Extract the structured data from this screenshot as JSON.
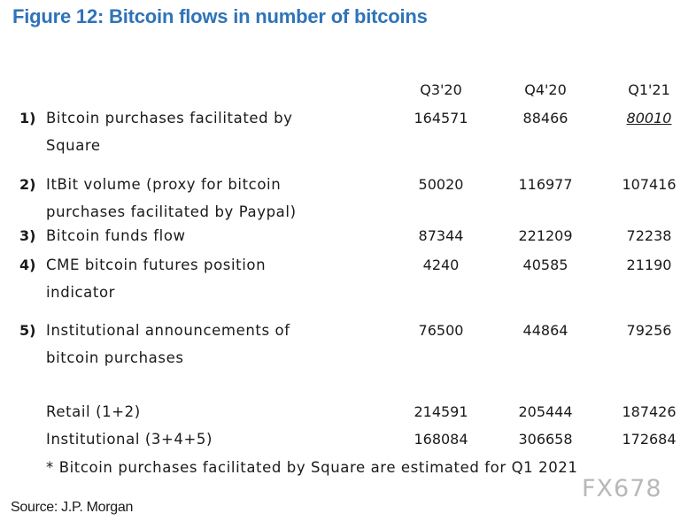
{
  "title": "Figure 12: Bitcoin flows in number of bitcoins",
  "columns": [
    "Q3'20",
    "Q4'20",
    "Q1'21"
  ],
  "rows": [
    {
      "num": "1)",
      "label_lines": [
        "Bitcoin purchases facilitated by",
        "Square"
      ],
      "values": [
        "164571",
        "88466",
        "80010"
      ]
    },
    {
      "num": "2)",
      "label_lines": [
        "ItBit volume (proxy for bitcoin",
        "purchases facilitated by Paypal)"
      ],
      "values": [
        "50020",
        "116977",
        "107416"
      ]
    },
    {
      "num": "3)",
      "label_lines": [
        "Bitcoin funds flow"
      ],
      "values": [
        "87344",
        "221209",
        "72238"
      ]
    },
    {
      "num": "4)",
      "label_lines": [
        "CME bitcoin futures position",
        "indicator"
      ],
      "values": [
        "4240",
        "40585",
        "21190"
      ]
    },
    {
      "num": "5)",
      "label_lines": [
        "Institutional announcements of",
        "bitcoin purchases"
      ],
      "values": [
        "76500",
        "44864",
        "79256"
      ]
    }
  ],
  "totals": [
    {
      "label": "Retail (1+2)",
      "values": [
        "214591",
        "205444",
        "187426"
      ]
    },
    {
      "label": "Institutional (3+4+5)",
      "values": [
        "168084",
        "306658",
        "172684"
      ]
    }
  ],
  "footnote": "* Bitcoin purchases facilitated by Square are estimated for Q1 2021",
  "source": "Source: J.P. Morgan",
  "watermark": "FX678",
  "colors": {
    "title": "#2f73b8",
    "text": "#1a1a1a",
    "watermark": "#a0a0a0"
  }
}
